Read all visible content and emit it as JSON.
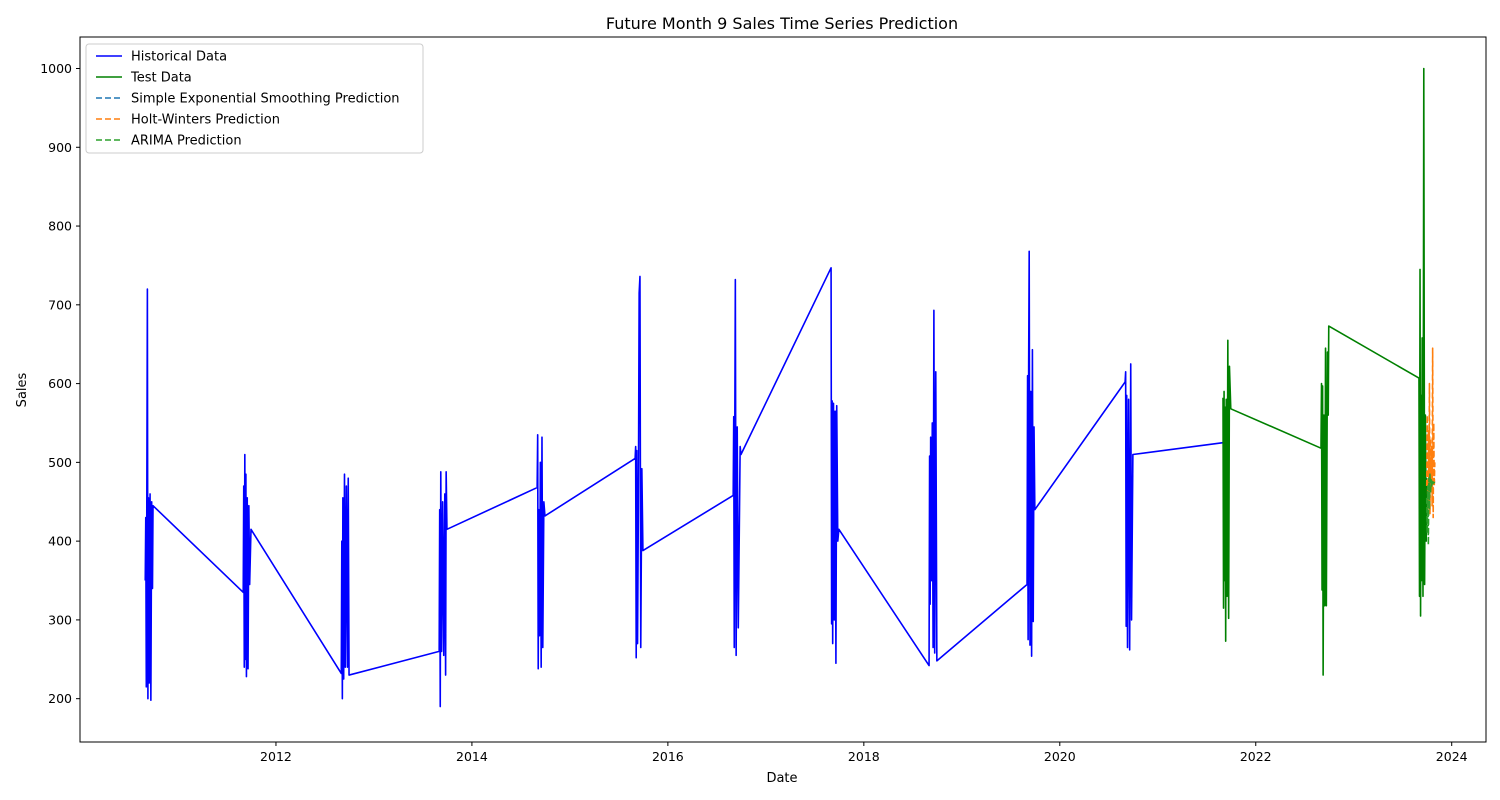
{
  "chart_data": {
    "type": "line",
    "title": "Future Month 9 Sales Time Series Prediction",
    "xlabel": "Date",
    "ylabel": "Sales",
    "xlim": [
      2010.0,
      2024.35
    ],
    "ylim": [
      145,
      1040
    ],
    "x_ticks": [
      2012,
      2014,
      2016,
      2018,
      2020,
      2022,
      2024
    ],
    "y_ticks": [
      200,
      300,
      400,
      500,
      600,
      700,
      800,
      900,
      1000
    ],
    "grid": false,
    "legend_position": "upper-left",
    "series": [
      {
        "name": "Historical Data",
        "color": "#0000ff",
        "dash": "solid",
        "years": [
          2010,
          2011,
          2012,
          2013,
          2014,
          2015,
          2016,
          2017,
          2018,
          2019,
          2020
        ],
        "points": [
          [
            "2010-09-01",
            350
          ],
          [
            "2010-09-03",
            430
          ],
          [
            "2010-09-05",
            215
          ],
          [
            "2010-09-07",
            465
          ],
          [
            "2010-09-09",
            720
          ],
          [
            "2010-09-11",
            200
          ],
          [
            "2010-09-13",
            455
          ],
          [
            "2010-09-16",
            220
          ],
          [
            "2010-09-19",
            460
          ],
          [
            "2010-09-22",
            198
          ],
          [
            "2010-09-25",
            450
          ],
          [
            "2010-09-28",
            340
          ],
          [
            "2010-09-30",
            445
          ],
          [
            "2011-09-01",
            335
          ],
          [
            "2011-09-03",
            470
          ],
          [
            "2011-09-05",
            240
          ],
          [
            "2011-09-07",
            510
          ],
          [
            "2011-09-09",
            250
          ],
          [
            "2011-09-11",
            485
          ],
          [
            "2011-09-13",
            228
          ],
          [
            "2011-09-16",
            455
          ],
          [
            "2011-09-19",
            238
          ],
          [
            "2011-09-22",
            445
          ],
          [
            "2011-09-25",
            345
          ],
          [
            "2011-09-30",
            415
          ],
          [
            "2012-09-01",
            232
          ],
          [
            "2012-09-03",
            400
          ],
          [
            "2012-09-05",
            200
          ],
          [
            "2012-09-07",
            455
          ],
          [
            "2012-09-10",
            225
          ],
          [
            "2012-09-13",
            485
          ],
          [
            "2012-09-16",
            240
          ],
          [
            "2012-09-20",
            470
          ],
          [
            "2012-09-24",
            240
          ],
          [
            "2012-09-27",
            480
          ],
          [
            "2012-09-30",
            230
          ],
          [
            "2013-09-01",
            260
          ],
          [
            "2013-09-03",
            440
          ],
          [
            "2013-09-05",
            190
          ],
          [
            "2013-09-07",
            488
          ],
          [
            "2013-09-10",
            260
          ],
          [
            "2013-09-14",
            450
          ],
          [
            "2013-09-18",
            255
          ],
          [
            "2013-09-22",
            460
          ],
          [
            "2013-09-25",
            230
          ],
          [
            "2013-09-27",
            488
          ],
          [
            "2013-09-30",
            415
          ],
          [
            "2014-09-01",
            468
          ],
          [
            "2014-09-03",
            535
          ],
          [
            "2014-09-05",
            238
          ],
          [
            "2014-09-07",
            440
          ],
          [
            "2014-09-10",
            280
          ],
          [
            "2014-09-13",
            500
          ],
          [
            "2014-09-16",
            240
          ],
          [
            "2014-09-19",
            532
          ],
          [
            "2014-09-22",
            265
          ],
          [
            "2014-09-26",
            450
          ],
          [
            "2014-09-30",
            432
          ],
          [
            "2015-09-01",
            505
          ],
          [
            "2015-09-03",
            520
          ],
          [
            "2015-09-05",
            252
          ],
          [
            "2015-09-07",
            515
          ],
          [
            "2015-09-10",
            270
          ],
          [
            "2015-09-13",
            440
          ],
          [
            "2015-09-16",
            715
          ],
          [
            "2015-09-19",
            736
          ],
          [
            "2015-09-22",
            265
          ],
          [
            "2015-09-26",
            492
          ],
          [
            "2015-09-30",
            388
          ],
          [
            "2016-09-01",
            458
          ],
          [
            "2016-09-03",
            558
          ],
          [
            "2016-09-05",
            265
          ],
          [
            "2016-09-07",
            545
          ],
          [
            "2016-09-09",
            732
          ],
          [
            "2016-09-12",
            255
          ],
          [
            "2016-09-16",
            545
          ],
          [
            "2016-09-20",
            290
          ],
          [
            "2016-09-24",
            420
          ],
          [
            "2016-09-27",
            520
          ],
          [
            "2016-09-30",
            510
          ],
          [
            "2017-09-01",
            747
          ],
          [
            "2017-09-03",
            295
          ],
          [
            "2017-09-05",
            578
          ],
          [
            "2017-09-07",
            270
          ],
          [
            "2017-09-10",
            575
          ],
          [
            "2017-09-13",
            300
          ],
          [
            "2017-09-16",
            565
          ],
          [
            "2017-09-19",
            245
          ],
          [
            "2017-09-22",
            572
          ],
          [
            "2017-09-26",
            400
          ],
          [
            "2017-09-30",
            415
          ],
          [
            "2018-09-01",
            242
          ],
          [
            "2018-09-03",
            508
          ],
          [
            "2018-09-05",
            320
          ],
          [
            "2018-09-07",
            532
          ],
          [
            "2018-09-10",
            350
          ],
          [
            "2018-09-13",
            550
          ],
          [
            "2018-09-16",
            265
          ],
          [
            "2018-09-19",
            693
          ],
          [
            "2018-09-22",
            258
          ],
          [
            "2018-09-26",
            615
          ],
          [
            "2018-09-30",
            248
          ],
          [
            "2019-09-01",
            345
          ],
          [
            "2019-09-03",
            610
          ],
          [
            "2019-09-05",
            275
          ],
          [
            "2019-09-07",
            622
          ],
          [
            "2019-09-09",
            768
          ],
          [
            "2019-09-12",
            268
          ],
          [
            "2019-09-15",
            590
          ],
          [
            "2019-09-18",
            254
          ],
          [
            "2019-09-21",
            643
          ],
          [
            "2019-09-24",
            298
          ],
          [
            "2019-09-27",
            545
          ],
          [
            "2019-09-30",
            440
          ],
          [
            "2020-09-01",
            602
          ],
          [
            "2020-09-03",
            615
          ],
          [
            "2020-09-05",
            292
          ],
          [
            "2020-09-07",
            585
          ],
          [
            "2020-09-10",
            265
          ],
          [
            "2020-09-14",
            580
          ],
          [
            "2020-09-18",
            262
          ],
          [
            "2020-09-22",
            625
          ],
          [
            "2020-09-25",
            300
          ],
          [
            "2020-09-30",
            510
          ],
          [
            "2021-09-01",
            525
          ]
        ]
      },
      {
        "name": "Test Data",
        "color": "#008000",
        "dash": "solid",
        "years": [
          2021,
          2022,
          2023
        ],
        "points": [
          [
            "2021-09-01",
            582
          ],
          [
            "2021-09-03",
            315
          ],
          [
            "2021-09-05",
            590
          ],
          [
            "2021-09-07",
            350
          ],
          [
            "2021-09-09",
            570
          ],
          [
            "2021-09-11",
            273
          ],
          [
            "2021-09-13",
            580
          ],
          [
            "2021-09-16",
            330
          ],
          [
            "2021-09-19",
            655
          ],
          [
            "2021-09-22",
            302
          ],
          [
            "2021-09-25",
            622
          ],
          [
            "2021-09-30",
            568
          ],
          [
            "2022-09-01",
            518
          ],
          [
            "2022-09-03",
            600
          ],
          [
            "2022-09-05",
            338
          ],
          [
            "2022-09-07",
            597
          ],
          [
            "2022-09-09",
            230
          ],
          [
            "2022-09-12",
            560
          ],
          [
            "2022-09-15",
            318
          ],
          [
            "2022-09-18",
            645
          ],
          [
            "2022-09-21",
            318
          ],
          [
            "2022-09-25",
            640
          ],
          [
            "2022-09-28",
            560
          ],
          [
            "2022-09-30",
            673
          ],
          [
            "2023-09-01",
            607
          ],
          [
            "2023-09-03",
            330
          ],
          [
            "2023-09-05",
            745
          ],
          [
            "2023-09-07",
            305
          ],
          [
            "2023-09-09",
            585
          ],
          [
            "2023-09-11",
            350
          ],
          [
            "2023-09-13",
            658
          ],
          [
            "2023-09-16",
            330
          ],
          [
            "2023-09-19",
            1000
          ],
          [
            "2023-09-22",
            345
          ],
          [
            "2023-09-25",
            560
          ],
          [
            "2023-09-28",
            400
          ],
          [
            "2023-09-30",
            480
          ]
        ]
      },
      {
        "name": "Simple Exponential Smoothing Prediction",
        "color": "#1f77b4",
        "dash": "dashed",
        "points": [
          [
            "2023-09-30",
            478
          ],
          [
            "2023-10-03",
            476
          ],
          [
            "2023-10-06",
            475
          ],
          [
            "2023-10-09",
            476
          ],
          [
            "2023-10-12",
            474
          ],
          [
            "2023-10-15",
            475
          ],
          [
            "2023-10-18",
            476
          ],
          [
            "2023-10-21",
            474
          ],
          [
            "2023-10-24",
            475
          ],
          [
            "2023-10-27",
            476
          ],
          [
            "2023-10-30",
            475
          ]
        ]
      },
      {
        "name": "Holt-Winters Prediction",
        "color": "#ff7f0e",
        "dash": "dashed",
        "points": [
          [
            "2023-09-30",
            470
          ],
          [
            "2023-10-02",
            560
          ],
          [
            "2023-10-04",
            440
          ],
          [
            "2023-10-06",
            540
          ],
          [
            "2023-10-08",
            450
          ],
          [
            "2023-10-10",
            600
          ],
          [
            "2023-10-12",
            435
          ],
          [
            "2023-10-14",
            530
          ],
          [
            "2023-10-16",
            470
          ],
          [
            "2023-10-18",
            520
          ],
          [
            "2023-10-20",
            445
          ],
          [
            "2023-10-22",
            645
          ],
          [
            "2023-10-24",
            430
          ],
          [
            "2023-10-26",
            550
          ],
          [
            "2023-10-28",
            470
          ],
          [
            "2023-10-30",
            500
          ]
        ]
      },
      {
        "name": "ARIMA Prediction",
        "color": "#2ca02c",
        "dash": "dashed",
        "points": [
          [
            "2023-09-30",
            455
          ],
          [
            "2023-10-02",
            410
          ],
          [
            "2023-10-04",
            470
          ],
          [
            "2023-10-06",
            395
          ],
          [
            "2023-10-08",
            480
          ],
          [
            "2023-10-10",
            440
          ],
          [
            "2023-10-12",
            485
          ],
          [
            "2023-10-14",
            460
          ],
          [
            "2023-10-16",
            478
          ],
          [
            "2023-10-18",
            470
          ],
          [
            "2023-10-20",
            476
          ],
          [
            "2023-10-22",
            472
          ],
          [
            "2023-10-24",
            475
          ],
          [
            "2023-10-27",
            474
          ],
          [
            "2023-10-30",
            475
          ]
        ]
      }
    ]
  }
}
